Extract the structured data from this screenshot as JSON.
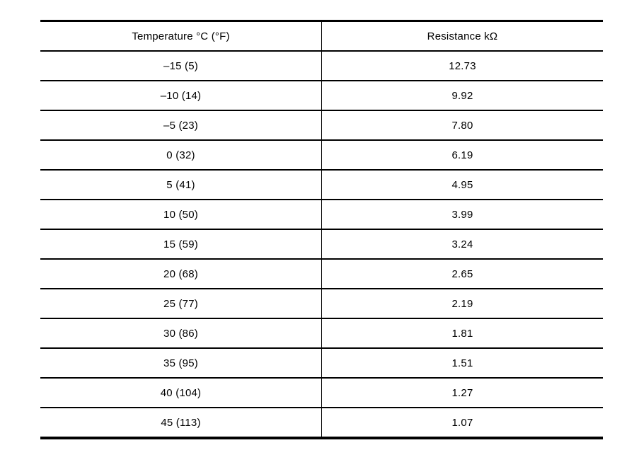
{
  "colors": {
    "background": "#ffffff",
    "border": "#000000",
    "text": "#000000"
  },
  "table": {
    "headers": {
      "temperature": "Temperature °C (°F)",
      "resistance": "Resistance kΩ"
    },
    "rows": [
      {
        "temp": "–15 (5)",
        "resistance": "12.73"
      },
      {
        "temp": "–10 (14)",
        "resistance": "9.92"
      },
      {
        "temp": "–5 (23)",
        "resistance": "7.80"
      },
      {
        "temp": "0 (32)",
        "resistance": "6.19"
      },
      {
        "temp": "5 (41)",
        "resistance": "4.95"
      },
      {
        "temp": "10 (50)",
        "resistance": "3.99"
      },
      {
        "temp": "15 (59)",
        "resistance": "3.24"
      },
      {
        "temp": "20 (68)",
        "resistance": "2.65"
      },
      {
        "temp": "25 (77)",
        "resistance": "2.19"
      },
      {
        "temp": "30 (86)",
        "resistance": "1.81"
      },
      {
        "temp": "35 (95)",
        "resistance": "1.51"
      },
      {
        "temp": "40 (104)",
        "resistance": "1.27"
      },
      {
        "temp": "45 (113)",
        "resistance": "1.07"
      }
    ]
  }
}
